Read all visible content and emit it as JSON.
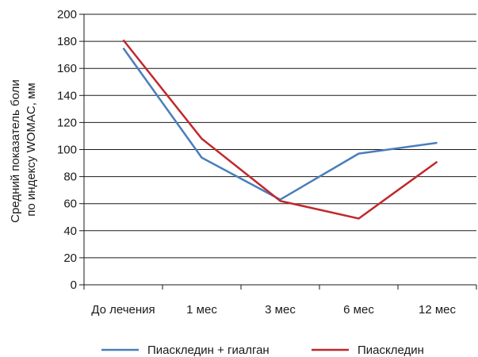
{
  "chart_data": {
    "type": "line",
    "title": "",
    "xlabel": "",
    "ylabel": [
      "Средний показатель боли",
      "по индексу  WOMAC, мм"
    ],
    "ylim": [
      0,
      200
    ],
    "yticks": [
      0,
      20,
      40,
      60,
      80,
      100,
      120,
      140,
      160,
      180,
      200
    ],
    "grid": true,
    "legend_position": "bottom",
    "categories": [
      "До лечения",
      "1 мес",
      "3 мес",
      "6 мес",
      "12 мес"
    ],
    "series": [
      {
        "name": "Пиаскледин + гиалган",
        "color": "#4a7ebb",
        "values": [
          175,
          94,
          63,
          97,
          105
        ]
      },
      {
        "name": "Пиаскледин",
        "color": "#c0282d",
        "values": [
          181,
          108,
          62,
          49,
          91
        ]
      }
    ]
  }
}
